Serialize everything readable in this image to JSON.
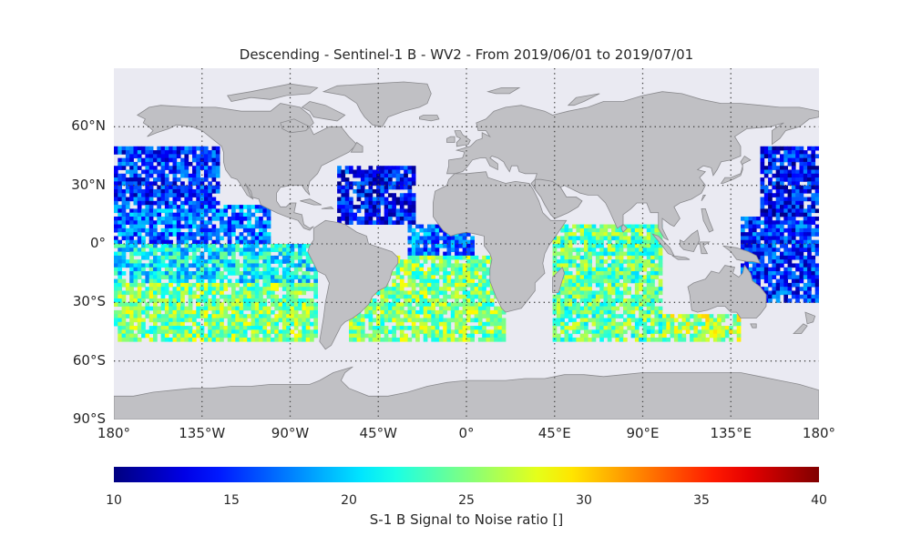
{
  "title": "Descending - Sentinel-1 B - WV2 - From 2019/06/01 to 2019/07/01",
  "colors": {
    "ocean": "#eaeaf2",
    "land": "#c0c0c4",
    "coast": "#8a8a8e",
    "grid": "#444444"
  },
  "map": {
    "lon_range": [
      -180,
      180
    ],
    "lat_range": [
      -90,
      90
    ],
    "grid_lons": [
      -135,
      -90,
      -45,
      0,
      45,
      90,
      135
    ],
    "grid_lats": [
      -60,
      -30,
      0,
      30,
      60
    ],
    "lat_ticks": [
      {
        "lat": 60,
        "label": "60°N"
      },
      {
        "lat": 30,
        "label": "30°N"
      },
      {
        "lat": 0,
        "label": "0°"
      },
      {
        "lat": -30,
        "label": "30°S"
      },
      {
        "lat": -60,
        "label": "60°S"
      },
      {
        "lat": -90,
        "label": "90°S"
      }
    ],
    "lon_ticks": [
      {
        "lon": -180,
        "label": "180°"
      },
      {
        "lon": -135,
        "label": "135°W"
      },
      {
        "lon": -90,
        "label": "90°W"
      },
      {
        "lon": -45,
        "label": "45°W"
      },
      {
        "lon": 0,
        "label": "0°"
      },
      {
        "lon": 45,
        "label": "45°E"
      },
      {
        "lon": 90,
        "label": "90°E"
      },
      {
        "lon": 135,
        "label": "135°E"
      },
      {
        "lon": 180,
        "label": "180°"
      }
    ]
  },
  "colorbar": {
    "min": 10,
    "max": 40,
    "colormap": "jet",
    "ticks": [
      "10",
      "15",
      "20",
      "25",
      "30",
      "35",
      "40"
    ],
    "label": "S-1 B Signal to Noise ratio []"
  },
  "chart_data": {
    "type": "heatmap",
    "title": "Descending - Sentinel-1 B - WV2 - From 2019/06/01 to 2019/07/01",
    "value_label": "S-1 B Signal to Noise ratio []",
    "value_range": [
      10,
      40
    ],
    "lat_coverage": [
      -50,
      50
    ],
    "regions": [
      {
        "lon": [
          -180,
          -125
        ],
        "lat": [
          20,
          50
        ],
        "snr": 15
      },
      {
        "lon": [
          -180,
          -100
        ],
        "lat": [
          0,
          20
        ],
        "snr": 17
      },
      {
        "lon": [
          -180,
          -75
        ],
        "lat": [
          -20,
          0
        ],
        "snr": 21
      },
      {
        "lon": [
          -180,
          -75
        ],
        "lat": [
          -50,
          -20
        ],
        "snr": 25
      },
      {
        "lon": [
          -65,
          -25
        ],
        "lat": [
          10,
          40
        ],
        "snr": 14
      },
      {
        "lon": [
          -30,
          5
        ],
        "lat": [
          -5,
          10
        ],
        "snr": 17
      },
      {
        "lon": [
          -60,
          20
        ],
        "lat": [
          -50,
          -5
        ],
        "snr": 25
      },
      {
        "lon": [
          45,
          100
        ],
        "lat": [
          -50,
          10
        ],
        "snr": 24
      },
      {
        "lon": [
          100,
          140
        ],
        "lat": [
          -50,
          -35
        ],
        "snr": 26
      },
      {
        "lon": [
          150,
          180
        ],
        "lat": [
          15,
          50
        ],
        "snr": 14
      },
      {
        "lon": [
          140,
          180
        ],
        "lat": [
          -30,
          15
        ],
        "snr": 15
      }
    ]
  }
}
